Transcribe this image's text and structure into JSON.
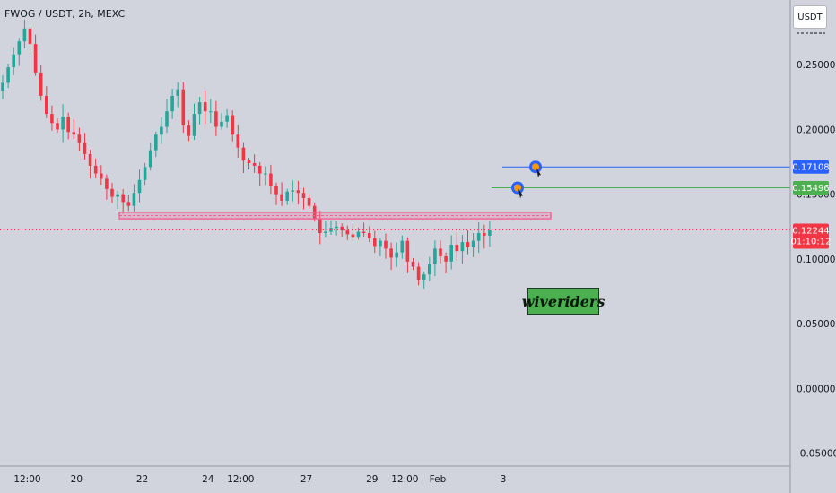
{
  "header": {
    "symbol_title": "FWOG / USDT, 2h, MEXC",
    "currency": "USDT"
  },
  "watermark": {
    "text": "wiveriders",
    "bg_color": "#4caf50"
  },
  "price_labels": {
    "target_1": {
      "value": "0.17108",
      "color": "#2962ff"
    },
    "target_2": {
      "value": "0.15496",
      "color": "#4caf50"
    },
    "current": {
      "value": "0.12244",
      "countdown": "01:10:12",
      "color": "#f23645"
    }
  },
  "colors": {
    "background": "#d1d4dc",
    "up_candle": "#26a69a",
    "down_candle": "#f23645",
    "support_zone": "#f06292",
    "axis_text": "#131722"
  },
  "icons": [
    "target-icon",
    "target-icon"
  ],
  "chart_data": {
    "type": "candlestick",
    "title": "FWOG / USDT, 2h, MEXC",
    "ylim": [
      -0.06,
      0.3
    ],
    "yticks": [
      0.25,
      0.2,
      0.15,
      0.1,
      0.05,
      0.0,
      -0.05
    ],
    "ytick_labels": [
      "0.25000",
      "0.20000",
      "0.15000",
      "0.10000",
      "0.05000",
      "0.00000",
      "-0.05000"
    ],
    "xticks": [
      {
        "label": "12:00",
        "index": 3
      },
      {
        "label": "20",
        "index": 12
      },
      {
        "label": "22",
        "index": 24
      },
      {
        "label": "24",
        "index": 36
      },
      {
        "label": "12:00",
        "index": 42
      },
      {
        "label": "27",
        "index": 54
      },
      {
        "label": "29",
        "index": 66
      },
      {
        "label": "12:00",
        "index": 72
      },
      {
        "label": "Feb",
        "index": 78
      },
      {
        "label": "3",
        "index": 90
      }
    ],
    "closes": [
      0.236,
      0.248,
      0.258,
      0.268,
      0.278,
      0.266,
      0.244,
      0.226,
      0.212,
      0.205,
      0.2,
      0.21,
      0.198,
      0.196,
      0.19,
      0.181,
      0.172,
      0.166,
      0.162,
      0.154,
      0.148,
      0.15,
      0.144,
      0.141,
      0.151,
      0.161,
      0.171,
      0.184,
      0.196,
      0.202,
      0.214,
      0.226,
      0.231,
      0.203,
      0.195,
      0.212,
      0.221,
      0.214,
      0.214,
      0.202,
      0.206,
      0.211,
      0.196,
      0.186,
      0.176,
      0.174,
      0.172,
      0.166,
      0.166,
      0.156,
      0.15,
      0.145,
      0.152,
      0.153,
      0.151,
      0.147,
      0.141,
      0.131,
      0.12,
      0.121,
      0.124,
      0.125,
      0.122,
      0.119,
      0.117,
      0.121,
      0.12,
      0.116,
      0.11,
      0.114,
      0.108,
      0.101,
      0.105,
      0.114,
      0.098,
      0.094,
      0.084,
      0.088,
      0.096,
      0.108,
      0.102,
      0.098,
      0.111,
      0.106,
      0.113,
      0.109,
      0.114,
      0.12,
      0.118,
      0.122
    ],
    "x_range": [
      0,
      110
    ],
    "support_zone": [
      0.131,
      0.136
    ],
    "current_price": 0.12244,
    "levels": [
      {
        "name": "target_1",
        "price": 0.17108,
        "color": "#2962ff"
      },
      {
        "name": "target_2",
        "price": 0.15496,
        "color": "#4caf50"
      }
    ],
    "grid": false
  }
}
